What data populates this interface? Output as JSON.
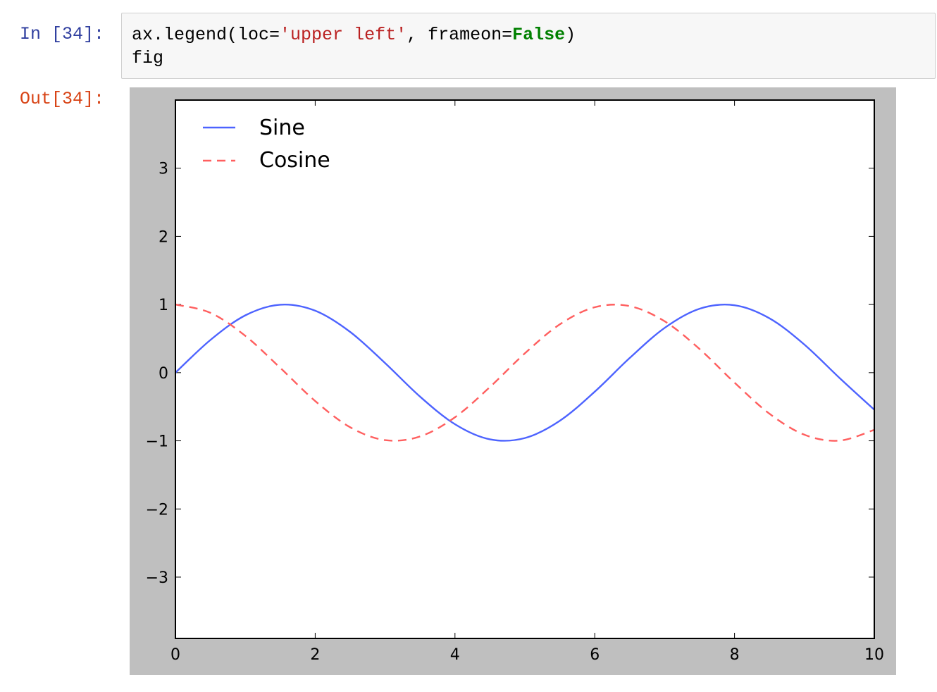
{
  "input_cell": {
    "prompt": "In [34]:",
    "code_line1": {
      "p1": "ax.legend(loc=",
      "s1": "'upper left'",
      "p2": ", frameon=",
      "k1": "False",
      "p3": ")"
    },
    "code_line2": "fig"
  },
  "output_cell": {
    "prompt": "Out[34]:"
  },
  "colors": {
    "prompt_in": "#303f9f",
    "prompt_out": "#d84315",
    "string": "#ba2121",
    "keyword": "#008000",
    "figure_bg": "#bfbfbf",
    "sine": "#4d63ff",
    "cosine": "#ff5f5f"
  },
  "chart_data": {
    "type": "line",
    "title": "",
    "xlabel": "",
    "ylabel": "",
    "xlim": [
      0,
      10
    ],
    "ylim": [
      -3.9,
      4.0
    ],
    "xticks": [
      "0",
      "2",
      "4",
      "6",
      "8",
      "10"
    ],
    "xtick_values": [
      0,
      2,
      4,
      6,
      8,
      10
    ],
    "yticks": [
      "−3",
      "−2",
      "−1",
      "0",
      "1",
      "2",
      "3"
    ],
    "ytick_values": [
      -3,
      -2,
      -1,
      0,
      1,
      2,
      3
    ],
    "grid": false,
    "legend": {
      "placement": "upper left",
      "frame": false
    },
    "series": [
      {
        "name": "Sine",
        "style": "solid",
        "color": "#4d63ff",
        "x": [
          0,
          0.5,
          1,
          1.5,
          2,
          2.5,
          3,
          3.5,
          4,
          4.5,
          5,
          5.5,
          6,
          6.5,
          7,
          7.5,
          8,
          8.5,
          9,
          9.5,
          10
        ],
        "y": [
          0,
          0.479,
          0.841,
          0.997,
          0.909,
          0.598,
          0.141,
          -0.351,
          -0.757,
          -0.978,
          -0.959,
          -0.706,
          -0.279,
          0.215,
          0.657,
          0.938,
          0.989,
          0.798,
          0.412,
          -0.075,
          -0.544
        ]
      },
      {
        "name": "Cosine",
        "style": "dashed",
        "color": "#ff5f5f",
        "x": [
          0,
          0.5,
          1,
          1.5,
          2,
          2.5,
          3,
          3.5,
          4,
          4.5,
          5,
          5.5,
          6,
          6.5,
          7,
          7.5,
          8,
          8.5,
          9,
          9.5,
          10
        ],
        "y": [
          1,
          0.878,
          0.54,
          0.071,
          -0.416,
          -0.801,
          -0.99,
          -0.936,
          -0.654,
          -0.211,
          0.284,
          0.709,
          0.96,
          0.977,
          0.754,
          0.347,
          -0.146,
          -0.602,
          -0.911,
          -0.997,
          -0.839
        ]
      }
    ]
  }
}
